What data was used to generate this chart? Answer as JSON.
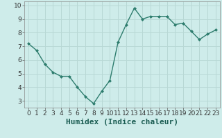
{
  "x": [
    0,
    1,
    2,
    3,
    4,
    5,
    6,
    7,
    8,
    9,
    10,
    11,
    12,
    13,
    14,
    15,
    16,
    17,
    18,
    19,
    20,
    21,
    22,
    23
  ],
  "y": [
    7.2,
    6.7,
    5.7,
    5.1,
    4.8,
    4.8,
    4.0,
    3.3,
    2.8,
    3.7,
    4.5,
    7.3,
    8.6,
    9.8,
    9.0,
    9.2,
    9.2,
    9.2,
    8.6,
    8.7,
    8.1,
    7.5,
    7.9,
    8.2
  ],
  "line_color": "#2e7d6e",
  "marker": "D",
  "marker_size": 2.0,
  "line_width": 1.0,
  "xlabel": "Humidex (Indice chaleur)",
  "xlim": [
    -0.5,
    23.5
  ],
  "ylim": [
    2.5,
    10.3
  ],
  "yticks": [
    3,
    4,
    5,
    6,
    7,
    8,
    9,
    10
  ],
  "xticks": [
    0,
    1,
    2,
    3,
    4,
    5,
    6,
    7,
    8,
    9,
    10,
    11,
    12,
    13,
    14,
    15,
    16,
    17,
    18,
    19,
    20,
    21,
    22,
    23
  ],
  "bg_color": "#ceecea",
  "grid_color": "#b8d8d5",
  "tick_labelsize": 6.5,
  "xlabel_fontsize": 8,
  "xlabel_fontweight": "bold"
}
